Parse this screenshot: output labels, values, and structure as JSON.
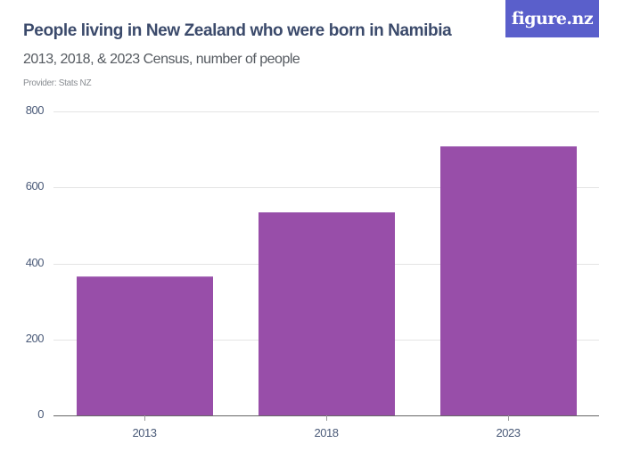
{
  "header": {
    "title": "People living in New Zealand who were born in Namibia",
    "subtitle": "2013, 2018, & 2023 Census, number of people",
    "provider": "Provider: Stats NZ",
    "logo": "figure.nz"
  },
  "colors": {
    "bar": "#984ea9",
    "logo_bg": "#5a5fcb",
    "title": "#3b4a6b"
  },
  "chart_data": {
    "type": "bar",
    "title": "People living in New Zealand who were born in Namibia",
    "subtitle": "2013, 2018, & 2023 Census, number of people",
    "categories": [
      "2013",
      "2018",
      "2023"
    ],
    "values": [
      365,
      536,
      708
    ],
    "xlabel": "",
    "ylabel": "",
    "ylim": [
      0,
      800
    ],
    "yticks": [
      "0",
      "200",
      "400",
      "600",
      "800"
    ],
    "grid": true,
    "legend": "none"
  }
}
